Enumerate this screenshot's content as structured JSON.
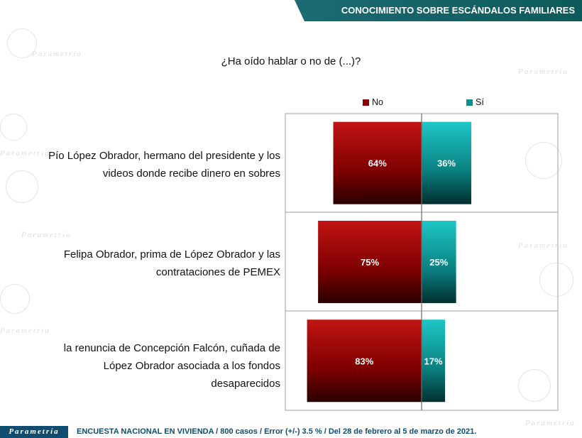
{
  "header": {
    "title": "CONOCIMIENTO SOBRE ESCÁNDALOS FAMILIARES"
  },
  "question": "¿Ha oído hablar o no de (...)?",
  "watermark": "Parametría",
  "footer": {
    "logo": "Parametría",
    "text": "ENCUESTA NACIONAL EN VIVIENDA / 800 casos / Error (+/-) 3.5 % / Del 28 de febrero al 5 de marzo de 2021."
  },
  "colors": {
    "no": "#8b0000",
    "si": "#0e8f8f",
    "header": "#0d5a5a"
  },
  "chart_data": {
    "type": "bar",
    "orientation": "diverging-horizontal",
    "categories": [
      "Pío López Obrador, hermano del presidente y los videos donde recibe dinero en sobres",
      "Felipa Obrador, prima de López Obrador y las contrataciones de PEMEX",
      "la renuncia de Concepción Falcón, cuñada de López Obrador asociada a los fondos desaparecidos"
    ],
    "category_lines": [
      [
        "Pío López Obrador, hermano del presidente y los",
        "videos donde recibe dinero en sobres"
      ],
      [
        "Felipa Obrador, prima de López Obrador y las",
        "contrataciones de PEMEX"
      ],
      [
        "la renuncia de Concepción Falcón, cuñada de",
        "López Obrador asociada a los fondos",
        "desaparecidos"
      ]
    ],
    "series": [
      {
        "name": "No",
        "values": [
          64,
          75,
          83
        ],
        "labels": [
          "64%",
          "75%",
          "83%"
        ],
        "color": "#8b0000"
      },
      {
        "name": "Sí",
        "values": [
          36,
          25,
          17
        ],
        "labels": [
          "36%",
          "25%",
          "17%"
        ],
        "color": "#0e8f8f"
      }
    ],
    "legend": "top",
    "grid": false
  }
}
